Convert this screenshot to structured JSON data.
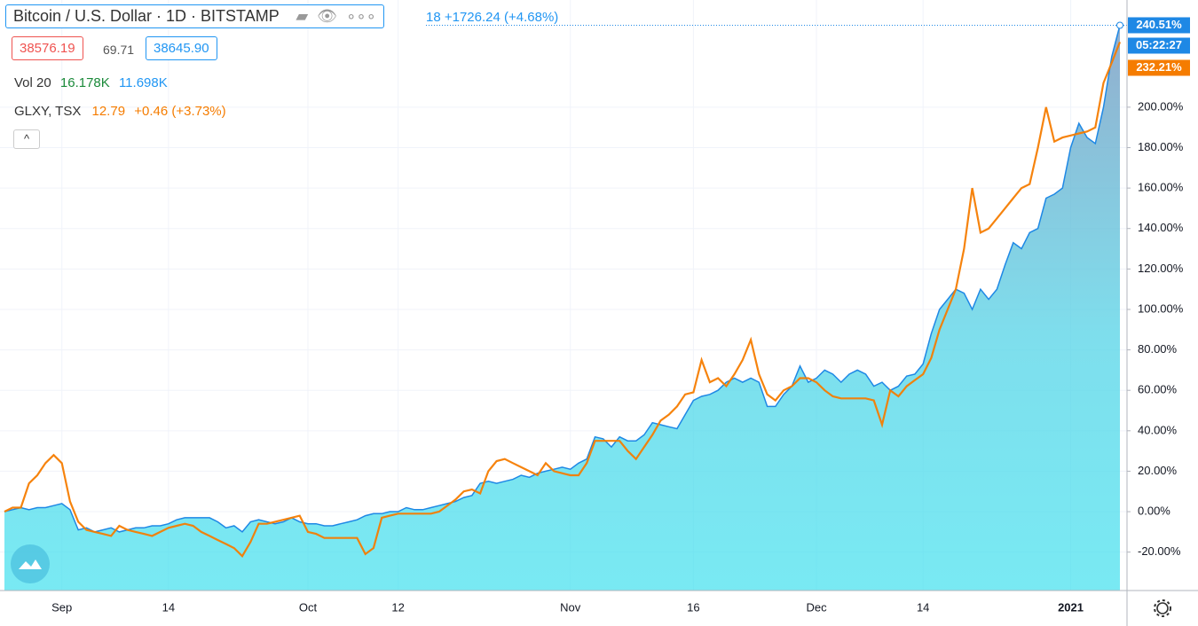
{
  "chart_data": {
    "type": "line",
    "header_tail": "18 +1726.24 (+4.68%)",
    "bid": "38576.19",
    "spread": "69.71",
    "ask": "38645.90",
    "volume": {
      "name": "Vol 20",
      "values": [
        "16.178K",
        "11.698K"
      ]
    },
    "compare": {
      "price": "12.79",
      "change": "+0.46 (+3.73%)"
    },
    "countdown": "05:22:27",
    "categories": [
      null,
      null,
      null,
      null,
      null,
      null,
      null,
      "Sep",
      null,
      null,
      null,
      null,
      null,
      null,
      null,
      null,
      null,
      null,
      null,
      null,
      "14",
      null,
      null,
      null,
      null,
      null,
      null,
      null,
      null,
      null,
      null,
      null,
      null,
      null,
      null,
      null,
      null,
      "Oct",
      null,
      null,
      null,
      null,
      null,
      null,
      null,
      null,
      null,
      null,
      "12",
      null,
      null,
      null,
      null,
      null,
      null,
      null,
      null,
      null,
      null,
      null,
      null,
      null,
      null,
      null,
      null,
      null,
      null,
      null,
      null,
      "Nov",
      null,
      null,
      null,
      null,
      null,
      null,
      null,
      null,
      null,
      null,
      null,
      null,
      null,
      null,
      "16",
      null,
      null,
      null,
      null,
      null,
      null,
      null,
      null,
      null,
      null,
      null,
      null,
      null,
      null,
      "Dec",
      null,
      null,
      null,
      null,
      null,
      null,
      null,
      null,
      null,
      null,
      null,
      null,
      "14",
      null,
      null,
      null,
      null,
      null,
      null,
      null,
      null,
      null,
      null,
      null,
      null,
      null,
      null,
      null,
      null,
      null,
      "2021",
      null,
      null,
      null,
      null,
      null,
      null
    ],
    "series": [
      {
        "name": "Bitcoin / U.S. Dollar · 1D · BITSTAMP",
        "color": "#1e88e5",
        "last_label": "240.51%",
        "values": [
          0,
          1,
          2,
          1,
          2,
          2,
          3,
          4,
          1,
          -9,
          -8,
          -10,
          -9,
          -8,
          -10,
          -9,
          -8,
          -8,
          -7,
          -7,
          -6,
          -4,
          -3,
          -3,
          -3,
          -3,
          -5,
          -8,
          -7,
          -10,
          -5,
          -4,
          -5,
          -6,
          -5,
          -3,
          -5,
          -6,
          -6,
          -7,
          -7,
          -6,
          -5,
          -4,
          -2,
          -1,
          -1,
          0,
          0,
          2,
          1,
          1,
          2,
          3,
          4,
          5,
          7,
          8,
          14,
          15,
          14,
          15,
          16,
          18,
          17,
          19,
          20,
          21,
          22,
          21,
          24,
          26,
          37,
          36,
          32,
          37,
          35,
          35,
          38,
          44,
          43,
          42,
          41,
          48,
          55,
          57,
          58,
          60,
          64,
          66,
          64,
          66,
          64,
          52,
          52,
          58,
          62,
          72,
          64,
          66,
          70,
          68,
          64,
          68,
          70,
          68,
          62,
          64,
          60,
          62,
          67,
          68,
          73,
          88,
          100,
          105,
          110,
          108,
          100,
          110,
          105,
          110,
          122,
          133,
          130,
          138,
          140,
          155,
          157,
          160,
          180,
          192,
          185,
          182,
          200,
          225,
          240.51
        ]
      },
      {
        "name": "GLXY, TSX",
        "color": "#f57c00",
        "last_label": "232.21%",
        "values": [
          0,
          2,
          2,
          14,
          18,
          24,
          28,
          24,
          5,
          -5,
          -9,
          -10,
          -11,
          -12,
          -7,
          -9,
          -10,
          -11,
          -12,
          -10,
          -8,
          -7,
          -6,
          -7,
          -10,
          -12,
          -14,
          -16,
          -18,
          -22,
          -15,
          -6,
          -6,
          -5,
          -4,
          -3,
          -2,
          -10,
          -11,
          -13,
          -13,
          -13,
          -13,
          -13,
          -21,
          -18,
          -3,
          -2,
          -1,
          -1,
          -1,
          -1,
          -1,
          0,
          3,
          6,
          10,
          11,
          9,
          20,
          25,
          26,
          24,
          22,
          20,
          18,
          24,
          20,
          19,
          18,
          18,
          24,
          35,
          35,
          35,
          35,
          30,
          26,
          32,
          38,
          45,
          48,
          52,
          58,
          59,
          75,
          64,
          66,
          62,
          68,
          75,
          85,
          68,
          58,
          55,
          60,
          62,
          66,
          66,
          64,
          60,
          57,
          56,
          56,
          56,
          56,
          55,
          43,
          60,
          57,
          62,
          65,
          68,
          76,
          90,
          100,
          110,
          130,
          160,
          138,
          140,
          145,
          150,
          155,
          160,
          162,
          180,
          200,
          183,
          185,
          186,
          187,
          188,
          190,
          212,
          222,
          232.21
        ]
      }
    ],
    "ylim": [
      -39,
      253
    ],
    "yticks": [
      {
        "value": -20,
        "label": "-20.00%"
      },
      {
        "value": 0,
        "label": "0.00%"
      },
      {
        "value": 20,
        "label": "20.00%"
      },
      {
        "value": 40,
        "label": "40.00%"
      },
      {
        "value": 60,
        "label": "60.00%"
      },
      {
        "value": 80,
        "label": "80.00%"
      },
      {
        "value": 100,
        "label": "100.00%"
      },
      {
        "value": 120,
        "label": "120.00%"
      },
      {
        "value": 140,
        "label": "140.00%"
      },
      {
        "value": 160,
        "label": "160.00%"
      },
      {
        "value": 180,
        "label": "180.00%"
      },
      {
        "value": 200,
        "label": "200.00%"
      }
    ],
    "grid": true
  }
}
